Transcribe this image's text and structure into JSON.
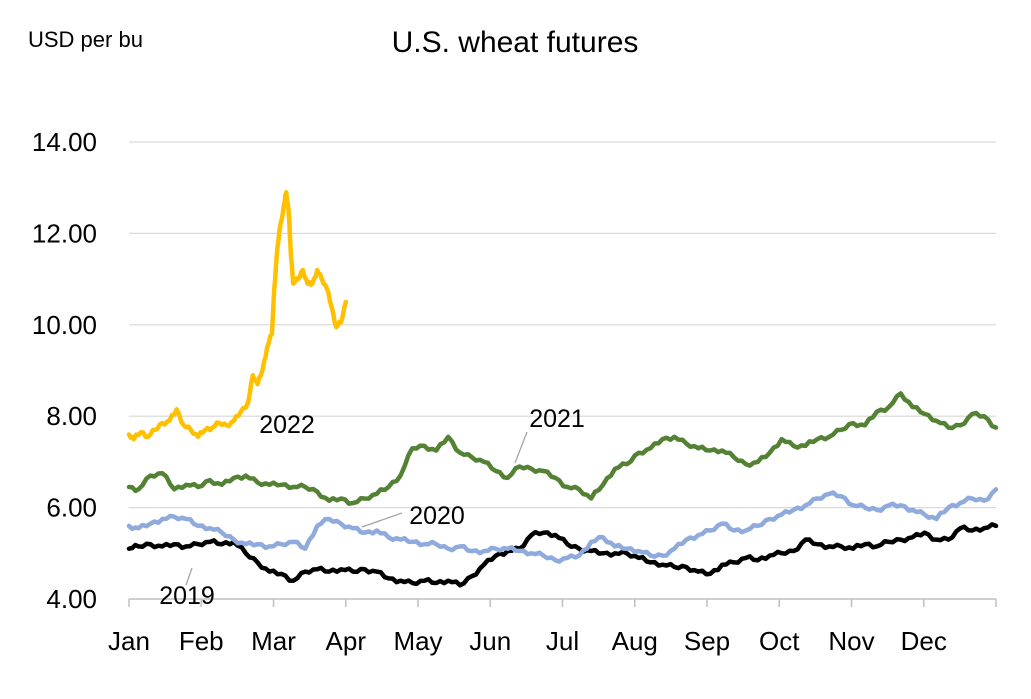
{
  "chart_data": {
    "type": "line",
    "title": "U.S. wheat futures",
    "ylabel": "USD per bu",
    "ylim": [
      4.0,
      14.0
    ],
    "yticks": [
      "4.00",
      "6.00",
      "8.00",
      "10.00",
      "12.00",
      "14.00"
    ],
    "x_categories": [
      "Jan",
      "Feb",
      "Mar",
      "Apr",
      "May",
      "Jun",
      "Jul",
      "Aug",
      "Sep",
      "Oct",
      "Nov",
      "Dec"
    ],
    "grid": true,
    "series": [
      {
        "name": "2019",
        "color": "#000000",
        "points": [
          [
            1,
            5.1
          ],
          [
            5,
            5.15
          ],
          [
            10,
            5.2
          ],
          [
            15,
            5.15
          ],
          [
            20,
            5.2
          ],
          [
            25,
            5.15
          ],
          [
            30,
            5.2
          ],
          [
            35,
            5.25
          ],
          [
            40,
            5.2
          ],
          [
            45,
            5.25
          ],
          [
            50,
            5.0
          ],
          [
            55,
            4.8
          ],
          [
            60,
            4.6
          ],
          [
            65,
            4.55
          ],
          [
            70,
            4.4
          ],
          [
            75,
            4.6
          ],
          [
            80,
            4.65
          ],
          [
            85,
            4.6
          ],
          [
            90,
            4.65
          ],
          [
            95,
            4.6
          ],
          [
            100,
            4.65
          ],
          [
            105,
            4.6
          ],
          [
            110,
            4.45
          ],
          [
            115,
            4.4
          ],
          [
            120,
            4.35
          ],
          [
            125,
            4.4
          ],
          [
            130,
            4.35
          ],
          [
            135,
            4.4
          ],
          [
            140,
            4.3
          ],
          [
            145,
            4.5
          ],
          [
            150,
            4.75
          ],
          [
            155,
            4.95
          ],
          [
            160,
            5.05
          ],
          [
            165,
            5.1
          ],
          [
            170,
            5.4
          ],
          [
            175,
            5.45
          ],
          [
            180,
            5.4
          ],
          [
            185,
            5.2
          ],
          [
            190,
            5.1
          ],
          [
            195,
            5.05
          ],
          [
            200,
            5.0
          ],
          [
            205,
            5.0
          ],
          [
            210,
            5.0
          ],
          [
            215,
            4.9
          ],
          [
            220,
            4.8
          ],
          [
            225,
            4.75
          ],
          [
            230,
            4.7
          ],
          [
            235,
            4.7
          ],
          [
            240,
            4.6
          ],
          [
            245,
            4.55
          ],
          [
            250,
            4.75
          ],
          [
            255,
            4.8
          ],
          [
            260,
            4.9
          ],
          [
            265,
            4.85
          ],
          [
            270,
            4.95
          ],
          [
            275,
            5.0
          ],
          [
            280,
            5.05
          ],
          [
            285,
            5.3
          ],
          [
            290,
            5.2
          ],
          [
            295,
            5.15
          ],
          [
            300,
            5.15
          ],
          [
            305,
            5.1
          ],
          [
            310,
            5.2
          ],
          [
            315,
            5.15
          ],
          [
            320,
            5.25
          ],
          [
            325,
            5.3
          ],
          [
            330,
            5.35
          ],
          [
            335,
            5.45
          ],
          [
            340,
            5.3
          ],
          [
            345,
            5.3
          ],
          [
            350,
            5.55
          ],
          [
            355,
            5.5
          ],
          [
            360,
            5.55
          ],
          [
            365,
            5.6
          ]
        ]
      },
      {
        "name": "2020",
        "color": "#8faadc",
        "points": [
          [
            1,
            5.6
          ],
          [
            5,
            5.55
          ],
          [
            10,
            5.65
          ],
          [
            15,
            5.75
          ],
          [
            20,
            5.8
          ],
          [
            25,
            5.75
          ],
          [
            30,
            5.6
          ],
          [
            35,
            5.55
          ],
          [
            40,
            5.45
          ],
          [
            45,
            5.3
          ],
          [
            50,
            5.2
          ],
          [
            55,
            5.2
          ],
          [
            60,
            5.15
          ],
          [
            65,
            5.2
          ],
          [
            70,
            5.25
          ],
          [
            75,
            5.1
          ],
          [
            80,
            5.6
          ],
          [
            85,
            5.75
          ],
          [
            90,
            5.65
          ],
          [
            95,
            5.55
          ],
          [
            100,
            5.45
          ],
          [
            105,
            5.5
          ],
          [
            110,
            5.35
          ],
          [
            115,
            5.3
          ],
          [
            120,
            5.25
          ],
          [
            125,
            5.2
          ],
          [
            130,
            5.2
          ],
          [
            135,
            5.1
          ],
          [
            140,
            5.15
          ],
          [
            145,
            5.05
          ],
          [
            150,
            5.05
          ],
          [
            155,
            5.1
          ],
          [
            160,
            5.1
          ],
          [
            165,
            5.05
          ],
          [
            170,
            5.0
          ],
          [
            175,
            4.95
          ],
          [
            180,
            4.85
          ],
          [
            185,
            4.9
          ],
          [
            190,
            4.95
          ],
          [
            195,
            5.25
          ],
          [
            200,
            5.35
          ],
          [
            205,
            5.15
          ],
          [
            210,
            5.1
          ],
          [
            215,
            5.05
          ],
          [
            220,
            4.95
          ],
          [
            225,
            4.95
          ],
          [
            230,
            5.1
          ],
          [
            235,
            5.3
          ],
          [
            240,
            5.4
          ],
          [
            245,
            5.5
          ],
          [
            250,
            5.65
          ],
          [
            255,
            5.5
          ],
          [
            260,
            5.5
          ],
          [
            265,
            5.6
          ],
          [
            270,
            5.75
          ],
          [
            275,
            5.85
          ],
          [
            280,
            5.95
          ],
          [
            285,
            6.05
          ],
          [
            290,
            6.2
          ],
          [
            295,
            6.3
          ],
          [
            300,
            6.25
          ],
          [
            305,
            6.05
          ],
          [
            310,
            6.0
          ],
          [
            315,
            5.95
          ],
          [
            320,
            6.05
          ],
          [
            325,
            6.05
          ],
          [
            330,
            5.95
          ],
          [
            335,
            5.85
          ],
          [
            340,
            5.75
          ],
          [
            345,
            6.0
          ],
          [
            350,
            6.1
          ],
          [
            355,
            6.2
          ],
          [
            360,
            6.15
          ],
          [
            365,
            6.4
          ]
        ]
      },
      {
        "name": "2021",
        "color": "#548235",
        "points": [
          [
            1,
            6.45
          ],
          [
            5,
            6.4
          ],
          [
            10,
            6.7
          ],
          [
            15,
            6.75
          ],
          [
            20,
            6.4
          ],
          [
            25,
            6.5
          ],
          [
            30,
            6.45
          ],
          [
            35,
            6.6
          ],
          [
            40,
            6.5
          ],
          [
            45,
            6.65
          ],
          [
            50,
            6.7
          ],
          [
            55,
            6.55
          ],
          [
            60,
            6.5
          ],
          [
            65,
            6.5
          ],
          [
            70,
            6.45
          ],
          [
            75,
            6.45
          ],
          [
            80,
            6.35
          ],
          [
            85,
            6.15
          ],
          [
            90,
            6.2
          ],
          [
            95,
            6.1
          ],
          [
            100,
            6.2
          ],
          [
            105,
            6.3
          ],
          [
            110,
            6.45
          ],
          [
            115,
            6.7
          ],
          [
            120,
            7.3
          ],
          [
            125,
            7.35
          ],
          [
            130,
            7.25
          ],
          [
            135,
            7.55
          ],
          [
            140,
            7.2
          ],
          [
            145,
            7.1
          ],
          [
            150,
            7.0
          ],
          [
            155,
            6.8
          ],
          [
            160,
            6.65
          ],
          [
            165,
            6.9
          ],
          [
            170,
            6.85
          ],
          [
            175,
            6.8
          ],
          [
            180,
            6.65
          ],
          [
            185,
            6.45
          ],
          [
            190,
            6.4
          ],
          [
            195,
            6.2
          ],
          [
            200,
            6.5
          ],
          [
            205,
            6.85
          ],
          [
            210,
            6.95
          ],
          [
            215,
            7.2
          ],
          [
            220,
            7.3
          ],
          [
            225,
            7.5
          ],
          [
            230,
            7.55
          ],
          [
            235,
            7.4
          ],
          [
            240,
            7.3
          ],
          [
            245,
            7.25
          ],
          [
            250,
            7.25
          ],
          [
            255,
            7.1
          ],
          [
            260,
            6.95
          ],
          [
            265,
            7.0
          ],
          [
            270,
            7.2
          ],
          [
            275,
            7.5
          ],
          [
            280,
            7.35
          ],
          [
            285,
            7.35
          ],
          [
            290,
            7.5
          ],
          [
            295,
            7.55
          ],
          [
            300,
            7.7
          ],
          [
            305,
            7.85
          ],
          [
            310,
            7.8
          ],
          [
            315,
            8.1
          ],
          [
            320,
            8.2
          ],
          [
            325,
            8.5
          ],
          [
            330,
            8.2
          ],
          [
            335,
            8.05
          ],
          [
            340,
            7.9
          ],
          [
            345,
            7.75
          ],
          [
            350,
            7.8
          ],
          [
            355,
            8.05
          ],
          [
            360,
            8.0
          ],
          [
            365,
            7.75
          ]
        ]
      },
      {
        "name": "2022",
        "color": "#ffc000",
        "points": [
          [
            1,
            7.6
          ],
          [
            3,
            7.5
          ],
          [
            6,
            7.65
          ],
          [
            9,
            7.55
          ],
          [
            12,
            7.7
          ],
          [
            15,
            7.85
          ],
          [
            18,
            7.9
          ],
          [
            21,
            8.15
          ],
          [
            24,
            7.8
          ],
          [
            27,
            7.7
          ],
          [
            30,
            7.55
          ],
          [
            33,
            7.7
          ],
          [
            36,
            7.75
          ],
          [
            39,
            7.85
          ],
          [
            42,
            7.8
          ],
          [
            45,
            7.9
          ],
          [
            48,
            8.1
          ],
          [
            51,
            8.3
          ],
          [
            53,
            8.9
          ],
          [
            55,
            8.7
          ],
          [
            57,
            9.0
          ],
          [
            59,
            9.5
          ],
          [
            61,
            9.8
          ],
          [
            62,
            10.8
          ],
          [
            63,
            11.5
          ],
          [
            64,
            12.0
          ],
          [
            66,
            12.6
          ],
          [
            67,
            12.9
          ],
          [
            68,
            12.5
          ],
          [
            69,
            11.5
          ],
          [
            70,
            10.9
          ],
          [
            72,
            11.0
          ],
          [
            74,
            11.2
          ],
          [
            76,
            10.9
          ],
          [
            78,
            10.9
          ],
          [
            80,
            11.2
          ],
          [
            82,
            11.0
          ],
          [
            84,
            10.8
          ],
          [
            86,
            10.4
          ],
          [
            88,
            9.95
          ],
          [
            90,
            10.05
          ],
          [
            92,
            10.5
          ]
        ]
      }
    ],
    "labels": [
      {
        "series": "2022",
        "text": "2022"
      },
      {
        "series": "2021",
        "text": "2021"
      },
      {
        "series": "2020",
        "text": "2020"
      },
      {
        "series": "2019",
        "text": "2019"
      }
    ]
  }
}
